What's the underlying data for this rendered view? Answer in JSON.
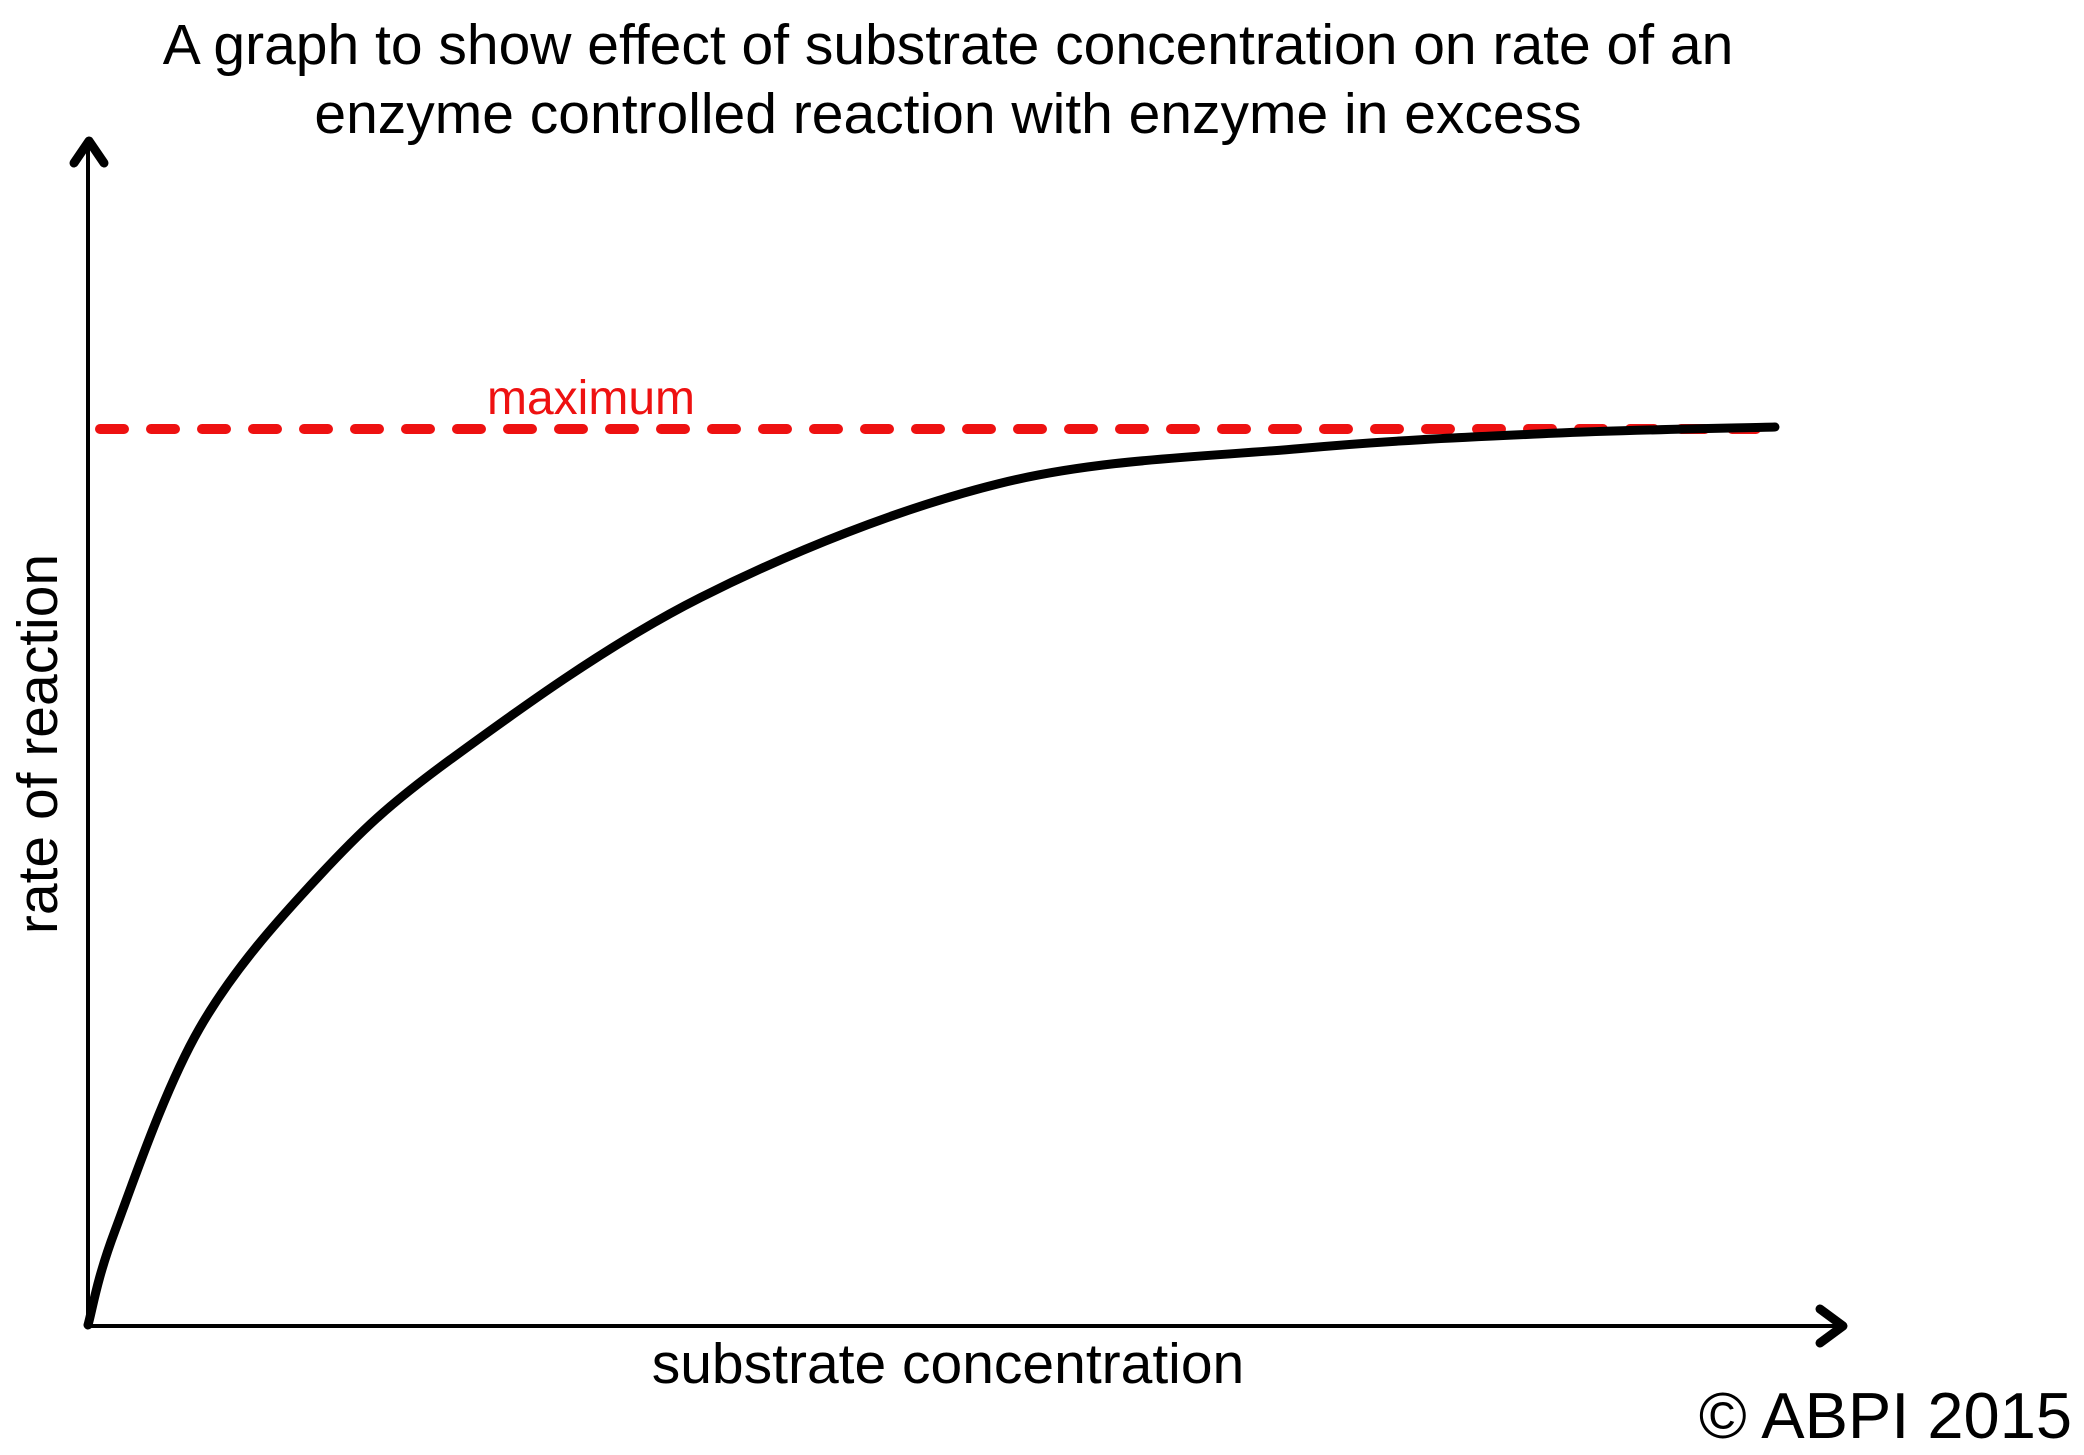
{
  "title": {
    "line1": "A graph to show effect of substrate concentration on rate of an",
    "line2": "enzyme controlled reaction with enzyme in excess"
  },
  "axes": {
    "y_label": "rate of reaction",
    "x_label": "substrate concentration"
  },
  "annotations": {
    "maximum_label": "maximum"
  },
  "footer": {
    "copyright": "© ABPI 2015"
  },
  "colors": {
    "ink": "#000000",
    "maximum_red": "#ee1111",
    "background": "#ffffff"
  },
  "chart_data": {
    "type": "line",
    "title": "A graph to show effect of substrate concentration on rate of an enzyme controlled reaction with enzyme in excess",
    "xlabel": "substrate concentration",
    "ylabel": "rate of reaction",
    "qualitative_axes": true,
    "tick_labels": "none",
    "grid": false,
    "xlim": [
      0,
      1
    ],
    "ylim": [
      0,
      1
    ],
    "series": [
      {
        "name": "rate of reaction vs substrate concentration",
        "shape": "saturating (Michaelis-Menten) curve rising steeply then plateauing at maximum",
        "points": [
          [
            0.0,
            0.0
          ],
          [
            0.016,
            0.105
          ],
          [
            0.066,
            0.33
          ],
          [
            0.137,
            0.5
          ],
          [
            0.215,
            0.63
          ],
          [
            0.363,
            0.81
          ],
          [
            0.54,
            0.937
          ],
          [
            0.718,
            0.976
          ],
          [
            0.868,
            0.993
          ],
          [
            1.0,
            1.0
          ]
        ]
      }
    ],
    "reference_lines": [
      {
        "type": "dashed-horizontal",
        "label": "maximum",
        "y": 1.0
      }
    ],
    "legend": "none"
  }
}
